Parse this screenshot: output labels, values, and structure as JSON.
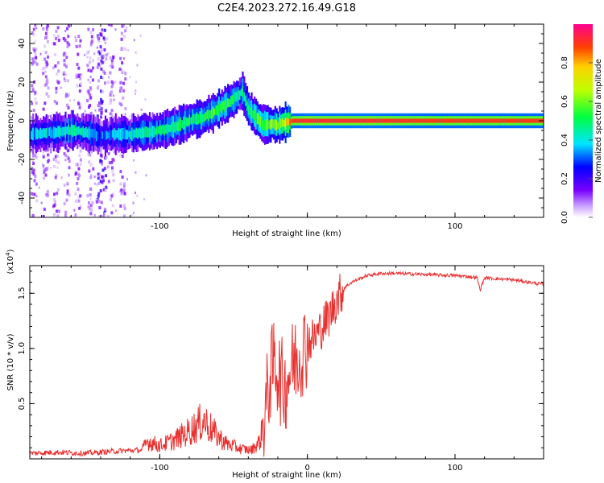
{
  "figure": {
    "title": "C2E4.2023.272.16.49.G18"
  },
  "chart_data": [
    {
      "type": "heatmap",
      "title": "C2E4.2023.272.16.49.G18",
      "xlabel": "Height of straight line (km)",
      "ylabel": "Frequency (Hz)",
      "xlim": [
        -188,
        160
      ],
      "ylim": [
        -50,
        50
      ],
      "x_ticks": [
        -100,
        0,
        100
      ],
      "x_tick_labels": [
        "-100",
        "",
        "100"
      ],
      "y_ticks": [
        -40,
        -20,
        0,
        20,
        40
      ],
      "y_tick_labels": [
        "-40",
        "-20",
        "0",
        "20",
        "40"
      ],
      "colorbar": {
        "label": "Normalized spectral amplitude",
        "range": [
          0,
          1
        ],
        "ticks": [
          0.0,
          0.2,
          0.4,
          0.6,
          0.8
        ],
        "tick_labels": [
          "0.0",
          "0.2",
          "0.4",
          "0.6",
          "0.8"
        ],
        "colormap": "rainbow"
      },
      "ridge": [
        {
          "x": -185,
          "y": -7,
          "amp": 0.35
        },
        {
          "x": -170,
          "y": -6,
          "amp": 0.4
        },
        {
          "x": -160,
          "y": -5,
          "amp": 0.45
        },
        {
          "x": -150,
          "y": -6,
          "amp": 0.4
        },
        {
          "x": -140,
          "y": -8,
          "amp": 0.3
        },
        {
          "x": -130,
          "y": -7,
          "amp": 0.35
        },
        {
          "x": -120,
          "y": -7,
          "amp": 0.4
        },
        {
          "x": -110,
          "y": -6,
          "amp": 0.45
        },
        {
          "x": -100,
          "y": -5,
          "amp": 0.45
        },
        {
          "x": -90,
          "y": -3,
          "amp": 0.5
        },
        {
          "x": -80,
          "y": 0,
          "amp": 0.5
        },
        {
          "x": -70,
          "y": 2,
          "amp": 0.5
        },
        {
          "x": -60,
          "y": 6,
          "amp": 0.55
        },
        {
          "x": -50,
          "y": 11,
          "amp": 0.5
        },
        {
          "x": -44,
          "y": 15,
          "amp": 0.45
        },
        {
          "x": -40,
          "y": 6,
          "amp": 0.5
        },
        {
          "x": -35,
          "y": 2,
          "amp": 0.55
        },
        {
          "x": -30,
          "y": -2,
          "amp": 0.55
        },
        {
          "x": -20,
          "y": -2,
          "amp": 0.6
        },
        {
          "x": -10,
          "y": 0,
          "amp": 0.9
        },
        {
          "x": 0,
          "y": 0,
          "amp": 0.92
        },
        {
          "x": 40,
          "y": 0,
          "amp": 0.92
        },
        {
          "x": 80,
          "y": 0,
          "amp": 0.9
        },
        {
          "x": 120,
          "y": 0,
          "amp": 0.9
        },
        {
          "x": 160,
          "y": 0,
          "amp": 0.9
        }
      ],
      "noise_columns": [
        -185,
        -177,
        -170,
        -163,
        -155,
        -147,
        -141,
        -138,
        -133,
        -125
      ]
    },
    {
      "type": "line",
      "xlabel": "Height of straight line (km)",
      "ylabel": "SNR (10 * v/v)",
      "y_multiplier_label": "(x10",
      "y_multiplier_exp": "4",
      "y_multiplier_close": ")",
      "xlim": [
        -188,
        160
      ],
      "ylim": [
        0,
        17500
      ],
      "x_ticks": [
        -100,
        0,
        100
      ],
      "x_tick_labels": [
        "-100",
        "0",
        "100"
      ],
      "y_ticks": [
        5000,
        10000,
        15000
      ],
      "y_tick_labels": [
        "0.5",
        "1.0",
        "1.5"
      ],
      "color": "#e8302f",
      "series": [
        {
          "x": [
            -188,
            -170,
            -150,
            -130,
            -112,
            -108,
            -100,
            -90,
            -80,
            -70,
            -62,
            -55,
            -45,
            -38,
            -32,
            -28,
            -25,
            -22,
            -18,
            -15,
            -12,
            -8,
            -5,
            0,
            5,
            10,
            15,
            20,
            25,
            30,
            40,
            50,
            60,
            80,
            100,
            110,
            115,
            117,
            120,
            130,
            140,
            150,
            160
          ],
          "y": [
            500,
            600,
            500,
            700,
            800,
            1600,
            1200,
            1700,
            2500,
            3500,
            2200,
            1400,
            900,
            800,
            1600,
            5000,
            7500,
            9000,
            7000,
            6500,
            8000,
            9000,
            9500,
            10500,
            11000,
            12000,
            13000,
            14500,
            15500,
            16000,
            16600,
            16800,
            16800,
            16700,
            16600,
            16500,
            16400,
            15300,
            16400,
            16300,
            16200,
            16000,
            15800
          ]
        }
      ]
    }
  ]
}
